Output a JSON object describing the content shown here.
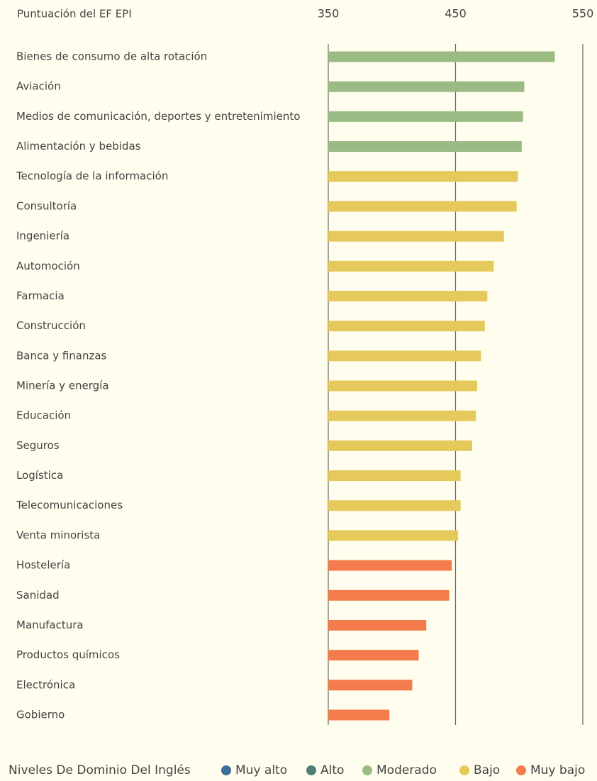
{
  "chart_data": {
    "type": "bar",
    "orientation": "horizontal",
    "x_label": "Puntuación del EF EPI",
    "categories": [
      "Bienes de consumo de alta rotación",
      "Aviación",
      "Medios de comunicación, deportes y entretenimiento",
      "Alimentación y bebidas",
      "Tecnología de la información",
      "Consultoría",
      "Ingeniería",
      "Automoción",
      "Farmacia",
      "Construcción",
      "Banca y finanzas",
      "Minería y energía",
      "Educación",
      "Seguros",
      "Logística",
      "Telecomunicaciones",
      "Venta minorista",
      "Hostelería",
      "Sanidad",
      "Manufactura",
      "Productos químicos",
      "Electrónica",
      "Gobierno"
    ],
    "values": [
      528,
      504,
      503,
      502,
      499,
      498,
      488,
      480,
      475,
      473,
      470,
      467,
      466,
      463,
      454,
      454,
      452,
      447,
      445,
      427,
      421,
      416,
      398
    ],
    "colors": [
      "#9bbb84",
      "#9bbb84",
      "#9bbb84",
      "#9bbb84",
      "#e5c95a",
      "#e5c95a",
      "#e5c95a",
      "#e5c95a",
      "#e5c95a",
      "#e5c95a",
      "#e5c95a",
      "#e5c95a",
      "#e5c95a",
      "#e5c95a",
      "#e5c95a",
      "#e5c95a",
      "#e5c95a",
      "#f47c4c",
      "#f47c4c",
      "#f47c4c",
      "#f47c4c",
      "#f47c4c",
      "#f47c4c"
    ],
    "xlim": [
      350,
      550
    ],
    "xticks": [
      350,
      450,
      550
    ],
    "grid": true,
    "legend": {
      "title": "Niveles De Dominio Del Inglés",
      "items": [
        {
          "name": "Muy alto",
          "color": "#3d6e96"
        },
        {
          "name": "Alto",
          "color": "#4f8077"
        },
        {
          "name": "Moderado",
          "color": "#9bbb84"
        },
        {
          "name": "Bajo",
          "color": "#e5c95a"
        },
        {
          "name": "Muy bajo",
          "color": "#f47c4c"
        }
      ]
    }
  }
}
